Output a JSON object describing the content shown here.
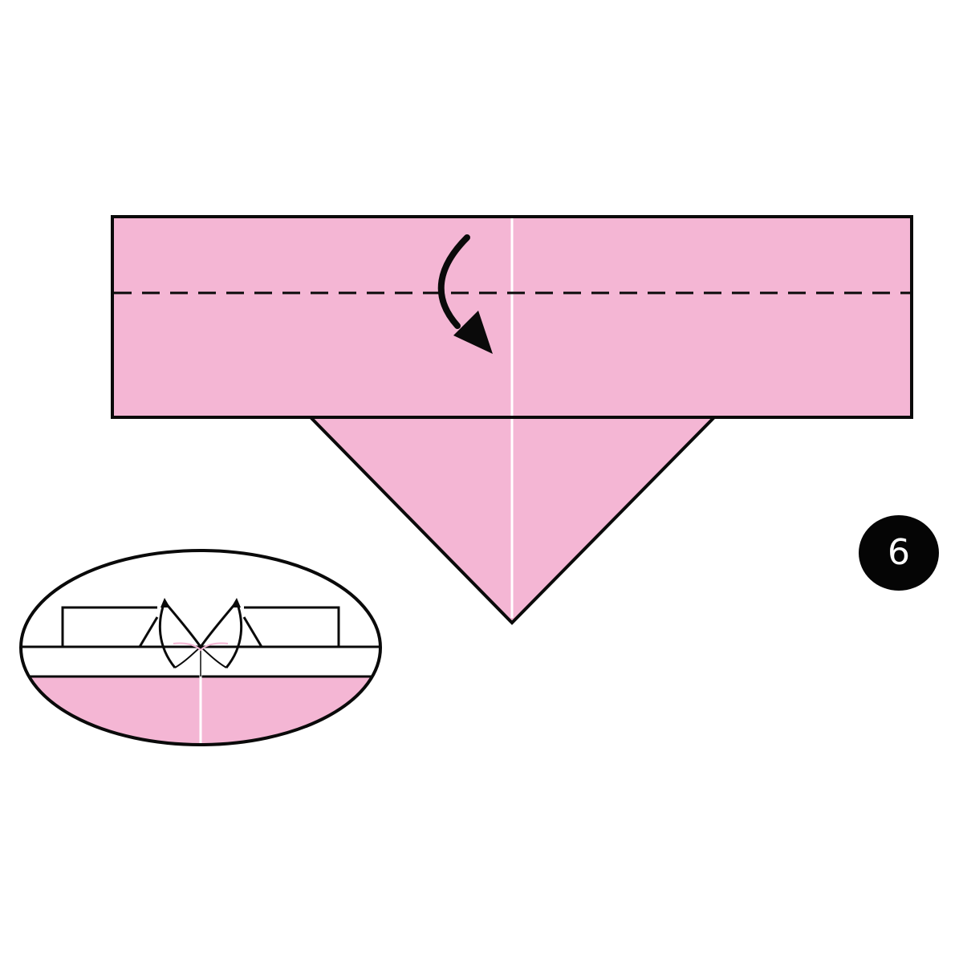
{
  "step": {
    "number": "6"
  },
  "colors": {
    "paper": "#f4b6d4",
    "outline": "#0a0a0a",
    "crease": "#ffffff",
    "badge": "#050505",
    "badge_text": "#ffffff",
    "background": "#ffffff"
  },
  "icons": {
    "fold_arrow": "curved-arrow-down-icon",
    "fold_line": "dashed-valley-fold-line"
  }
}
